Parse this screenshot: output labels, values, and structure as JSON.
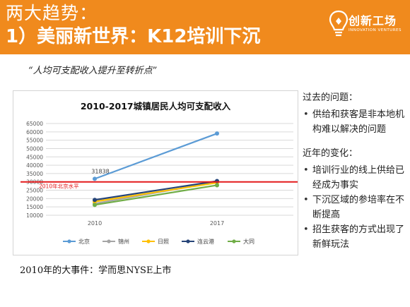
{
  "header": {
    "title_line1": "两大趋势：",
    "title_line2": "1）美丽新世界：K12培训下沉",
    "logo_text": "创新工场",
    "logo_subtext": "INNOVATION VENTURES",
    "logo_icon": "lightbulb-icon",
    "bg_color": "#f08a1d"
  },
  "quote": "“人均可支配收入提升至转折点”",
  "chart_data": {
    "type": "line",
    "title": "2010-2017城镇居民人均可支配收入",
    "categories": [
      "2010",
      "2017"
    ],
    "ylim": [
      10000,
      65000
    ],
    "yticks": [
      10000,
      15000,
      20000,
      25000,
      30000,
      35000,
      40000,
      45000,
      50000,
      55000,
      60000,
      65000
    ],
    "grid": true,
    "legend": "bottom",
    "series": [
      {
        "name": "北京",
        "values": [
          31838,
          59000
        ],
        "color": "#5b9bd5"
      },
      {
        "name": "锦州",
        "values": [
          17000,
          30000
        ],
        "color": "#a5a5a5"
      },
      {
        "name": "日照",
        "values": [
          18200,
          29500
        ],
        "color": "#ffc000"
      },
      {
        "name": "连云港",
        "values": [
          19200,
          30500
        ],
        "color": "#264478"
      },
      {
        "name": "大同",
        "values": [
          16200,
          28000
        ],
        "color": "#70ad47"
      }
    ],
    "annotations": [
      {
        "text": "31838",
        "category": "2010",
        "value": 31838
      }
    ],
    "reference_line": {
      "value": 30000,
      "label": "2010年北京水平",
      "color": "#e31a1c"
    }
  },
  "right_panel": {
    "past_heading": "过去的问题：",
    "past_items": [
      "供给和获客是非本地机构难以解决的问题"
    ],
    "recent_heading": "近年的变化：",
    "recent_items": [
      "培训行业的线上供给已经成为事实",
      "下沉区域的参培率在不断提高",
      "招生获客的方式出现了新鲜玩法"
    ]
  },
  "event_text": "2010年的大事件：学而思NYSE上市"
}
